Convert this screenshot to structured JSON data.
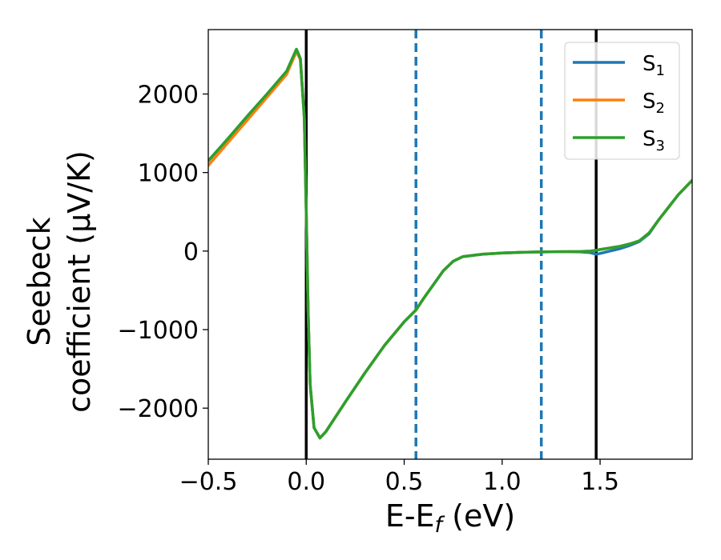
{
  "chart_data": {
    "type": "line",
    "xlabel": "E-E",
    "xlabel_sub": "f",
    "xlabel_unit": " (eV)",
    "ylabel_line1": "Seebeck",
    "ylabel_line2": "coefficient  (μV/K)",
    "xlim": [
      -0.5,
      1.97
    ],
    "ylim": [
      -2650,
      2820
    ],
    "xticks": [
      -0.5,
      0.0,
      0.5,
      1.0,
      1.5
    ],
    "xtick_labels": [
      "−0.5",
      "0.0",
      "0.5",
      "1.0",
      "1.5"
    ],
    "yticks": [
      -2000,
      -1000,
      0,
      1000,
      2000
    ],
    "ytick_labels": [
      "−2000",
      "−1000",
      "0",
      "1000",
      "2000"
    ],
    "legend_position": "top-right",
    "vlines": [
      {
        "x": 0.0,
        "color": "#000000",
        "style": "solid"
      },
      {
        "x": 1.48,
        "color": "#000000",
        "style": "solid"
      },
      {
        "x": 0.56,
        "color": "#1f77b4",
        "style": "dashed"
      },
      {
        "x": 1.2,
        "color": "#1f77b4",
        "style": "dashed"
      }
    ],
    "series": [
      {
        "name": "S",
        "name_sub": "1",
        "color": "#1f77b4",
        "x": [
          -0.5,
          -0.4,
          -0.3,
          -0.2,
          -0.1,
          -0.05,
          -0.03,
          -0.01,
          0.0,
          0.01,
          0.02,
          0.04,
          0.07,
          0.1,
          0.2,
          0.3,
          0.4,
          0.5,
          0.56,
          0.6,
          0.7,
          0.75,
          0.8,
          0.9,
          1.0,
          1.1,
          1.2,
          1.3,
          1.4,
          1.45,
          1.48,
          1.5,
          1.55,
          1.6,
          1.65,
          1.7,
          1.75,
          1.8,
          1.85,
          1.9,
          1.97
        ],
        "y": [
          1150,
          1430,
          1720,
          2000,
          2290,
          2570,
          2450,
          1700,
          500,
          -800,
          -1700,
          -2250,
          -2380,
          -2300,
          -1920,
          -1550,
          -1200,
          -900,
          -750,
          -600,
          -250,
          -130,
          -70,
          -40,
          -25,
          -15,
          -10,
          -8,
          -10,
          -20,
          -40,
          -30,
          0,
          30,
          70,
          120,
          220,
          400,
          560,
          720,
          900
        ]
      },
      {
        "name": "S",
        "name_sub": "2",
        "color": "#ff7f0e",
        "x": [
          -0.5,
          -0.4,
          -0.3,
          -0.2,
          -0.1,
          -0.05,
          -0.03,
          -0.01,
          0.0,
          0.01,
          0.02,
          0.04,
          0.07,
          0.1,
          0.2,
          0.3,
          0.4,
          0.5,
          0.56,
          0.6,
          0.7,
          0.75,
          0.8,
          0.9,
          1.0,
          1.1,
          1.2,
          1.3,
          1.4,
          1.45,
          1.48,
          1.5,
          1.55,
          1.6,
          1.65,
          1.7,
          1.75,
          1.8,
          1.85,
          1.9,
          1.97
        ],
        "y": [
          1090,
          1380,
          1670,
          1960,
          2250,
          2540,
          2440,
          1700,
          500,
          -800,
          -1700,
          -2250,
          -2380,
          -2300,
          -1920,
          -1550,
          -1200,
          -900,
          -750,
          -600,
          -250,
          -130,
          -70,
          -40,
          -25,
          -15,
          -10,
          -8,
          -5,
          0,
          10,
          20,
          40,
          60,
          90,
          130,
          230,
          400,
          560,
          720,
          900
        ]
      },
      {
        "name": "S",
        "name_sub": "3",
        "color": "#2ca02c",
        "x": [
          -0.5,
          -0.4,
          -0.3,
          -0.2,
          -0.1,
          -0.05,
          -0.03,
          -0.01,
          0.0,
          0.01,
          0.02,
          0.04,
          0.07,
          0.1,
          0.2,
          0.3,
          0.4,
          0.5,
          0.56,
          0.6,
          0.7,
          0.75,
          0.8,
          0.9,
          1.0,
          1.1,
          1.2,
          1.3,
          1.4,
          1.45,
          1.48,
          1.5,
          1.55,
          1.6,
          1.65,
          1.7,
          1.75,
          1.8,
          1.85,
          1.9,
          1.97
        ],
        "y": [
          1150,
          1430,
          1720,
          2000,
          2290,
          2570,
          2450,
          1700,
          500,
          -800,
          -1700,
          -2250,
          -2380,
          -2300,
          -1920,
          -1550,
          -1200,
          -900,
          -750,
          -600,
          -250,
          -130,
          -70,
          -40,
          -25,
          -15,
          -10,
          -8,
          -5,
          0,
          10,
          20,
          40,
          60,
          90,
          130,
          230,
          400,
          560,
          720,
          900
        ]
      }
    ]
  }
}
